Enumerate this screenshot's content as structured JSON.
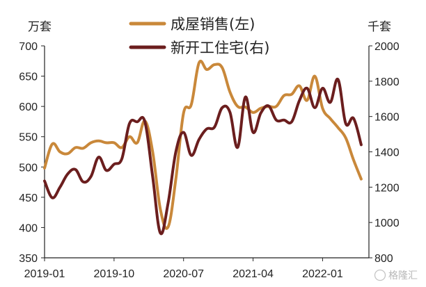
{
  "chart_data": {
    "type": "line",
    "left_unit": "万套",
    "right_unit": "千套",
    "left_axis": {
      "min": 350,
      "max": 700,
      "ticks": [
        "350",
        "400",
        "450",
        "500",
        "550",
        "600",
        "650",
        "700"
      ]
    },
    "right_axis": {
      "min": 800,
      "max": 2000,
      "ticks": [
        "800",
        "1000",
        "1200",
        "1400",
        "1600",
        "1800",
        "2000"
      ]
    },
    "x_ticks": [
      "2019-01",
      "2019-10",
      "2020-07",
      "2021-04",
      "2022-01"
    ],
    "x_range": [
      "2019-01",
      "2022-07"
    ],
    "grid": false,
    "legend_position": "top-center",
    "series": [
      {
        "name": "成屋销售(左)",
        "axis": "left",
        "color": "#c9883a",
        "points": [
          [
            "2019-01",
            498
          ],
          [
            "2019-02",
            538
          ],
          [
            "2019-03",
            525
          ],
          [
            "2019-04",
            522
          ],
          [
            "2019-05",
            532
          ],
          [
            "2019-06",
            531
          ],
          [
            "2019-07",
            540
          ],
          [
            "2019-08",
            543
          ],
          [
            "2019-09",
            540
          ],
          [
            "2019-10",
            540
          ],
          [
            "2019-11",
            532
          ],
          [
            "2019-12",
            550
          ],
          [
            "2020-01",
            540
          ],
          [
            "2020-02",
            576
          ],
          [
            "2020-03",
            525
          ],
          [
            "2020-04",
            430
          ],
          [
            "2020-05",
            401
          ],
          [
            "2020-06",
            480
          ],
          [
            "2020-07",
            589
          ],
          [
            "2020-08",
            603
          ],
          [
            "2020-09",
            672
          ],
          [
            "2020-10",
            661
          ],
          [
            "2020-11",
            669
          ],
          [
            "2020-12",
            664
          ],
          [
            "2021-01",
            624
          ],
          [
            "2021-02",
            600
          ],
          [
            "2021-03",
            599
          ],
          [
            "2021-04",
            590
          ],
          [
            "2021-05",
            597
          ],
          [
            "2021-06",
            600
          ],
          [
            "2021-07",
            600
          ],
          [
            "2021-08",
            618
          ],
          [
            "2021-09",
            620
          ],
          [
            "2021-10",
            634
          ],
          [
            "2021-11",
            610
          ],
          [
            "2021-12",
            650
          ],
          [
            "2022-01",
            597
          ],
          [
            "2022-02",
            580
          ],
          [
            "2022-03",
            565
          ],
          [
            "2022-04",
            548
          ],
          [
            "2022-05",
            512
          ],
          [
            "2022-06",
            480
          ]
        ]
      },
      {
        "name": "新开工住宅(右)",
        "axis": "right",
        "color": "#6b1e1e",
        "points": [
          [
            "2019-01",
            1235
          ],
          [
            "2019-02",
            1140
          ],
          [
            "2019-03",
            1200
          ],
          [
            "2019-04",
            1275
          ],
          [
            "2019-05",
            1300
          ],
          [
            "2019-06",
            1230
          ],
          [
            "2019-07",
            1260
          ],
          [
            "2019-08",
            1370
          ],
          [
            "2019-09",
            1295
          ],
          [
            "2019-10",
            1330
          ],
          [
            "2019-11",
            1360
          ],
          [
            "2019-12",
            1560
          ],
          [
            "2020-01",
            1570
          ],
          [
            "2020-02",
            1570
          ],
          [
            "2020-03",
            1260
          ],
          [
            "2020-04",
            940
          ],
          [
            "2020-05",
            1110
          ],
          [
            "2020-06",
            1400
          ],
          [
            "2020-07",
            1510
          ],
          [
            "2020-08",
            1380
          ],
          [
            "2020-09",
            1470
          ],
          [
            "2020-10",
            1530
          ],
          [
            "2020-11",
            1540
          ],
          [
            "2020-12",
            1650
          ],
          [
            "2021-01",
            1625
          ],
          [
            "2021-02",
            1425
          ],
          [
            "2021-03",
            1710
          ],
          [
            "2021-04",
            1510
          ],
          [
            "2021-05",
            1620
          ],
          [
            "2021-06",
            1660
          ],
          [
            "2021-07",
            1580
          ],
          [
            "2021-08",
            1580
          ],
          [
            "2021-09",
            1570
          ],
          [
            "2021-10",
            1690
          ],
          [
            "2021-11",
            1760
          ],
          [
            "2021-12",
            1650
          ],
          [
            "2022-01",
            1760
          ],
          [
            "2022-02",
            1680
          ],
          [
            "2022-03",
            1810
          ],
          [
            "2022-04",
            1560
          ],
          [
            "2022-05",
            1590
          ],
          [
            "2022-06",
            1440
          ]
        ]
      }
    ],
    "watermark": "格隆汇"
  }
}
